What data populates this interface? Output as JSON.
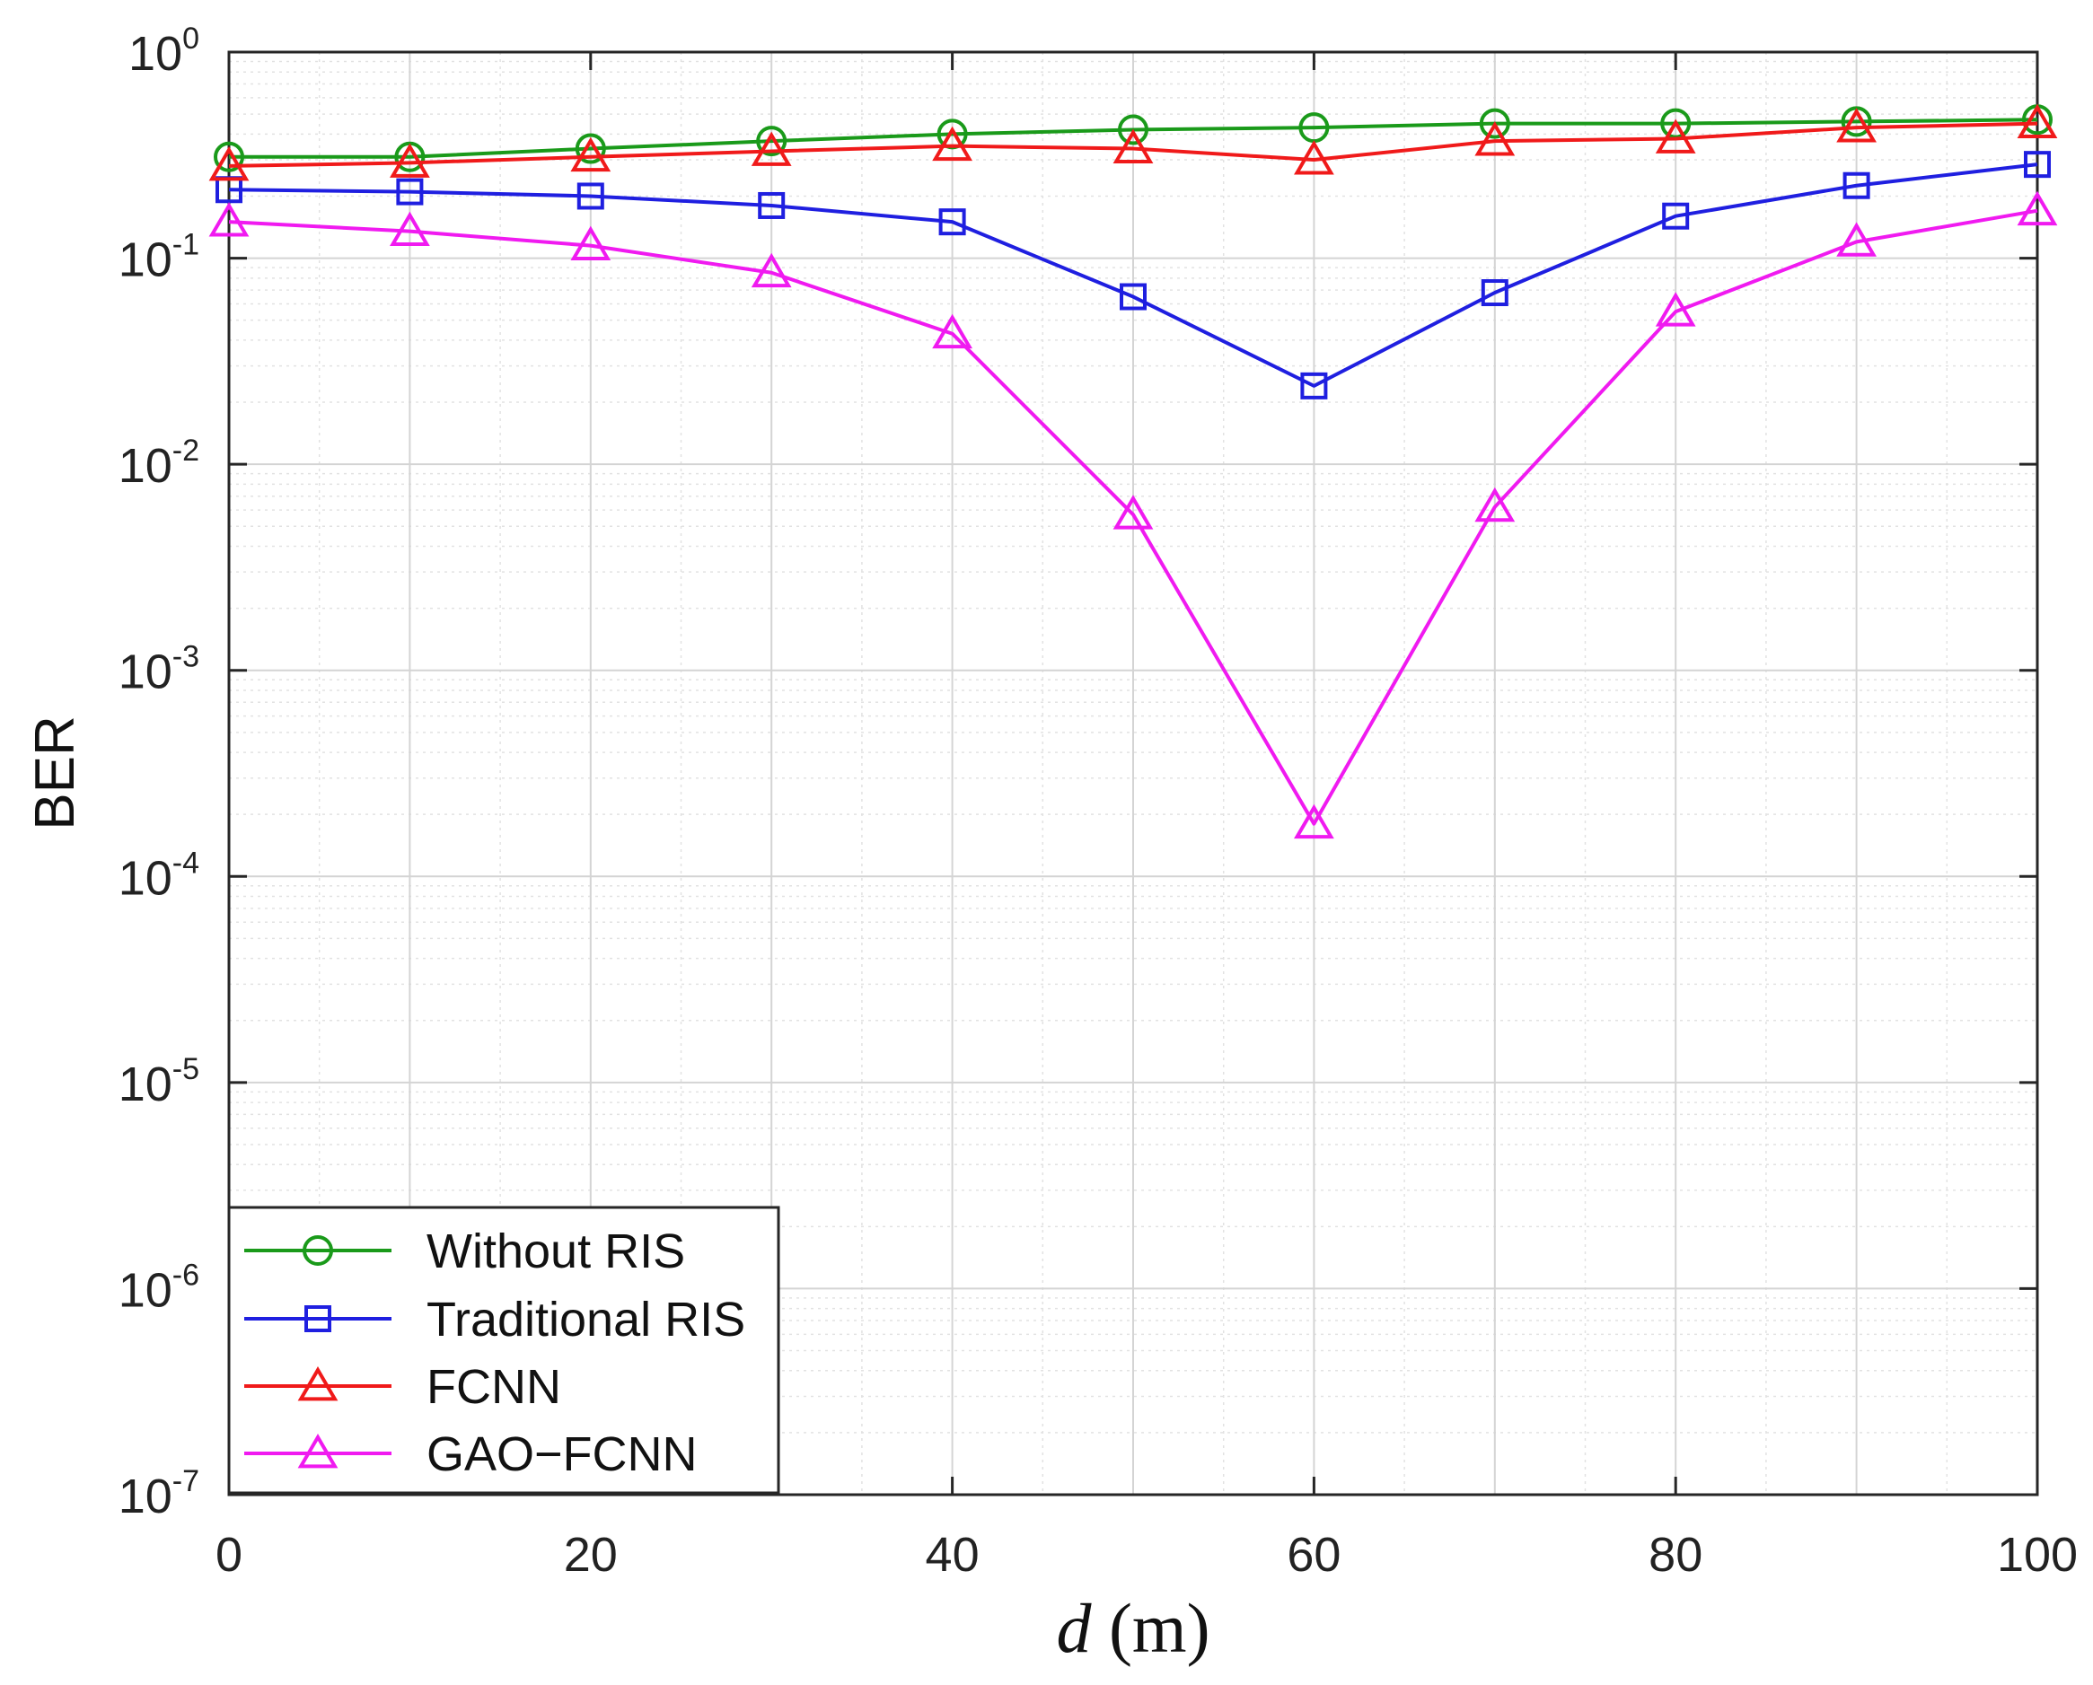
{
  "chart_data": {
    "type": "line",
    "title": "",
    "xlabel_var": "d",
    "xlabel_unit": "(m)",
    "ylabel": "BER",
    "xscale": "linear",
    "yscale": "log",
    "xlim": [
      0,
      100
    ],
    "ylim": [
      1e-07,
      1
    ],
    "xticks": [
      0,
      20,
      40,
      60,
      80,
      100
    ],
    "yticks": [
      {
        "base": "10",
        "exp": "0",
        "value": 1
      },
      {
        "base": "10",
        "exp": "-1",
        "value": 0.1
      },
      {
        "base": "10",
        "exp": "-2",
        "value": 0.01
      },
      {
        "base": "10",
        "exp": "-3",
        "value": 0.001
      },
      {
        "base": "10",
        "exp": "-4",
        "value": 0.0001
      },
      {
        "base": "10",
        "exp": "-5",
        "value": 1e-05
      },
      {
        "base": "10",
        "exp": "-6",
        "value": 1e-06
      },
      {
        "base": "10",
        "exp": "-7",
        "value": 1e-07
      }
    ],
    "grid": true,
    "legend_position": "bottom-left",
    "x": [
      0,
      10,
      20,
      30,
      40,
      50,
      60,
      70,
      80,
      90,
      100
    ],
    "series": [
      {
        "name": "Without RIS",
        "color": "#1a9a1a",
        "marker": "circle",
        "values": [
          0.31,
          0.31,
          0.34,
          0.37,
          0.4,
          0.42,
          0.43,
          0.45,
          0.45,
          0.46,
          0.47
        ]
      },
      {
        "name": "Traditional RIS",
        "color": "#1f1fe0",
        "marker": "square",
        "values": [
          0.215,
          0.21,
          0.2,
          0.18,
          0.15,
          0.065,
          0.024,
          0.068,
          0.16,
          0.225,
          0.285
        ]
      },
      {
        "name": "FCNN",
        "color": "#f01a1a",
        "marker": "triangle",
        "values": [
          0.28,
          0.29,
          0.31,
          0.33,
          0.35,
          0.34,
          0.3,
          0.37,
          0.38,
          0.43,
          0.45
        ]
      },
      {
        "name": "GAO−FCNN",
        "color": "#f01af0",
        "marker": "triangle",
        "values": [
          0.15,
          0.135,
          0.115,
          0.085,
          0.043,
          0.0057,
          0.00018,
          0.0062,
          0.055,
          0.12,
          0.17
        ]
      }
    ]
  }
}
